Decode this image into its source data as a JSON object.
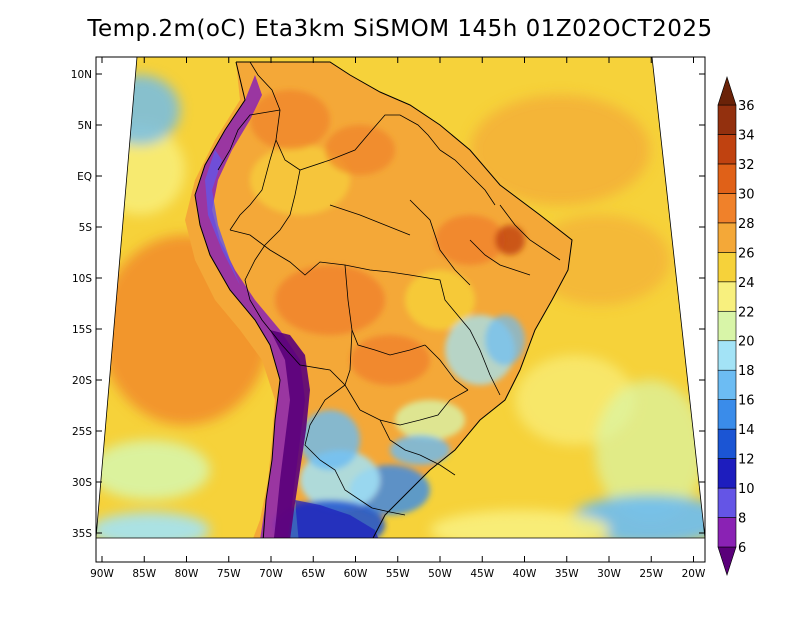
{
  "title": "Temp.2m(oC) Eta3km SiSMOM 145h 01Z02OCT2025",
  "map": {
    "variable": "Temp.2m",
    "units": "oC",
    "model": "Eta3km SiSMOM",
    "forecast_hour": "145h",
    "valid_time": "01Z02OCT2025",
    "lat_ticks": [
      "10N",
      "5N",
      "EQ",
      "5S",
      "10S",
      "15S",
      "20S",
      "25S",
      "30S",
      "35S"
    ],
    "lat_values": [
      10,
      5,
      0,
      -5,
      -10,
      -15,
      -20,
      -25,
      -30,
      -35
    ],
    "lon_ticks": [
      "90W",
      "85W",
      "80W",
      "75W",
      "70W",
      "65W",
      "60W",
      "55W",
      "50W",
      "45W",
      "40W",
      "35W",
      "30W",
      "25W",
      "20W"
    ],
    "lon_values": [
      -90,
      -85,
      -80,
      -75,
      -70,
      -65,
      -60,
      -55,
      -50,
      -45,
      -40,
      -35,
      -30,
      -25,
      -20
    ],
    "region": "South America / Brazil"
  },
  "colorbar": {
    "labels": [
      "6",
      "8",
      "10",
      "12",
      "14",
      "16",
      "18",
      "20",
      "22",
      "24",
      "26",
      "28",
      "30",
      "32",
      "34",
      "36"
    ],
    "values": [
      6,
      8,
      10,
      12,
      14,
      16,
      18,
      20,
      22,
      24,
      26,
      28,
      30,
      32,
      34,
      36
    ],
    "colors": [
      "#5a007a",
      "#8a22b4",
      "#6455e6",
      "#1d1dbe",
      "#1b55d4",
      "#3a8cea",
      "#6cbcf3",
      "#a3e3f6",
      "#d8f5a8",
      "#f8f07e",
      "#f6d23a",
      "#f4a838",
      "#f0812a",
      "#e06118",
      "#c04210",
      "#93300e",
      "#6a2208"
    ]
  },
  "colors": {
    "ocean_warm": "#f4a838",
    "land_default": "#f6d23a"
  }
}
